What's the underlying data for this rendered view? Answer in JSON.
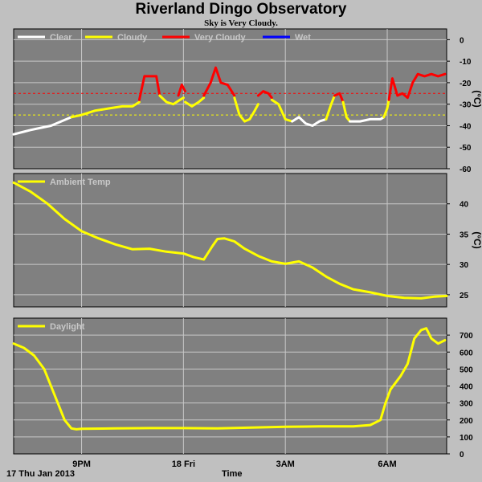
{
  "title": "Riverland Dingo Observatory",
  "subtitle": "Sky is Very Cloudy.",
  "date_label": "17 Thu Jan 2013",
  "xlabel": "Time",
  "x_ticks": [
    {
      "t": 2.0,
      "label": "9PM"
    },
    {
      "t": 5.0,
      "label": "18 Fri"
    },
    {
      "t": 8.0,
      "label": "3AM"
    },
    {
      "t": 11.0,
      "label": "6AM"
    }
  ],
  "x_range": [
    0,
    12.75
  ],
  "colors": {
    "panel_bg": "#808080",
    "page_bg": "#c0c0c0",
    "grid": "#c8c8c8",
    "clear": "#ffffff",
    "cloudy": "#ffff00",
    "very_cloudy": "#ff0000",
    "wet": "#0000ff"
  },
  "chart_data": [
    {
      "type": "line",
      "panel": "sky",
      "ylabel": "(°C)",
      "ylim": [
        -60,
        5
      ],
      "yticks": [
        0,
        -10,
        -20,
        -30,
        -40,
        -50,
        -60
      ],
      "legend": [
        {
          "name": "Clear",
          "color": "#ffffff"
        },
        {
          "name": "Cloudy",
          "color": "#ffff00"
        },
        {
          "name": "Very Cloudy",
          "color": "#ff0000"
        },
        {
          "name": "Wet",
          "color": "#0000ff"
        }
      ],
      "thresholds": [
        {
          "value": -25,
          "color": "#ff0000"
        },
        {
          "value": -35,
          "color": "#ffff00"
        }
      ],
      "series": [
        {
          "state": "clear",
          "x": [
            0,
            0.25,
            0.5,
            0.8,
            1.1,
            1.4,
            1.7
          ],
          "y": [
            -44,
            -43,
            -42,
            -41,
            -40,
            -38,
            -36
          ]
        },
        {
          "state": "cloudy",
          "x": [
            1.7,
            2.0,
            2.4,
            2.8,
            3.2,
            3.5,
            3.7
          ],
          "y": [
            -36,
            -35,
            -33,
            -32,
            -31,
            -31,
            -29
          ]
        },
        {
          "state": "very_cloudy",
          "x": [
            3.7,
            3.85,
            4.0,
            4.2,
            4.3
          ],
          "y": [
            -28,
            -17,
            -17,
            -17,
            -26
          ]
        },
        {
          "state": "cloudy",
          "x": [
            4.3,
            4.5,
            4.7,
            4.9,
            5.0
          ],
          "y": [
            -26,
            -29,
            -30,
            -28,
            -27
          ]
        },
        {
          "state": "very_cloudy",
          "x": [
            4.85,
            4.95,
            5.05
          ],
          "y": [
            -26,
            -21,
            -24
          ]
        },
        {
          "state": "cloudy",
          "x": [
            5.05,
            5.25,
            5.45,
            5.6
          ],
          "y": [
            -29,
            -31,
            -29,
            -27
          ]
        },
        {
          "state": "very_cloudy",
          "x": [
            5.6,
            5.8,
            5.95,
            6.1,
            6.3,
            6.5
          ],
          "y": [
            -26,
            -20,
            -13,
            -20,
            -21,
            -26
          ]
        },
        {
          "state": "cloudy",
          "x": [
            6.5,
            6.65,
            6.8,
            6.95,
            7.1,
            7.2
          ],
          "y": [
            -27,
            -35,
            -38,
            -37,
            -33,
            -30
          ]
        },
        {
          "state": "very_cloudy",
          "x": [
            7.2,
            7.35,
            7.5,
            7.6
          ],
          "y": [
            -26,
            -24,
            -25,
            -27
          ]
        },
        {
          "state": "cloudy",
          "x": [
            7.6,
            7.8,
            8.0,
            8.2
          ],
          "y": [
            -28,
            -30,
            -37,
            -38
          ]
        },
        {
          "state": "clear",
          "x": [
            8.2,
            8.4,
            8.6,
            8.8,
            9.0,
            9.2
          ],
          "y": [
            -38,
            -36,
            -39,
            -40,
            -38,
            -37
          ]
        },
        {
          "state": "cloudy",
          "x": [
            9.2,
            9.35,
            9.45
          ],
          "y": [
            -37,
            -30,
            -26
          ]
        },
        {
          "state": "very_cloudy",
          "x": [
            9.45,
            9.6,
            9.7
          ],
          "y": [
            -26,
            -25,
            -29
          ]
        },
        {
          "state": "cloudy",
          "x": [
            9.7,
            9.8,
            9.9
          ],
          "y": [
            -29,
            -36,
            -38
          ]
        },
        {
          "state": "clear",
          "x": [
            9.9,
            10.2,
            10.5,
            10.8,
            10.9
          ],
          "y": [
            -38,
            -38,
            -37,
            -37,
            -36
          ]
        },
        {
          "state": "cloudy",
          "x": [
            10.9,
            11.0,
            11.05
          ],
          "y": [
            -36,
            -32,
            -28
          ]
        },
        {
          "state": "very_cloudy",
          "x": [
            11.05,
            11.15,
            11.3,
            11.45,
            11.6,
            11.75,
            11.9,
            12.1,
            12.3,
            12.5,
            12.7
          ],
          "y": [
            -28,
            -18,
            -26,
            -25,
            -27,
            -20,
            -16,
            -17,
            -16,
            -17,
            -16
          ]
        }
      ]
    },
    {
      "type": "line",
      "panel": "ambient",
      "ylabel": "(°C)",
      "ylim": [
        23,
        45
      ],
      "yticks": [
        25,
        30,
        35,
        40
      ],
      "legend": [
        {
          "name": "Ambient Temp",
          "color": "#ffff00"
        }
      ],
      "series": [
        {
          "name": "Ambient Temp",
          "x": [
            0,
            0.5,
            1.0,
            1.5,
            2.0,
            2.5,
            3.0,
            3.5,
            4.0,
            4.5,
            5.0,
            5.3,
            5.6,
            5.85,
            6.0,
            6.2,
            6.5,
            6.8,
            7.2,
            7.6,
            8.0,
            8.4,
            8.8,
            9.2,
            9.6,
            10.0,
            10.5,
            11.0,
            11.5,
            12.0,
            12.4,
            12.75
          ],
          "y": [
            43.5,
            42,
            40,
            37.5,
            35.5,
            34.3,
            33.3,
            32.5,
            32.6,
            32.1,
            31.8,
            31.2,
            30.8,
            33.0,
            34.2,
            34.3,
            33.8,
            32.6,
            31.4,
            30.5,
            30.1,
            30.5,
            29.5,
            28.0,
            26.8,
            25.9,
            25.4,
            24.8,
            24.5,
            24.4,
            24.7,
            24.8
          ]
        }
      ]
    },
    {
      "type": "line",
      "panel": "daylight",
      "ylabel": "",
      "ylim": [
        0,
        800
      ],
      "yticks": [
        0,
        100,
        200,
        300,
        400,
        500,
        600,
        700
      ],
      "legend": [
        {
          "name": "Daylight",
          "color": "#ffff00"
        }
      ],
      "series": [
        {
          "name": "Daylight",
          "x": [
            0,
            0.3,
            0.6,
            0.9,
            1.2,
            1.5,
            1.7,
            1.85,
            2.0,
            3.0,
            4.0,
            5.0,
            6.0,
            7.0,
            8.0,
            9.0,
            10.0,
            10.5,
            10.8,
            10.95,
            11.1,
            11.4,
            11.6,
            11.8,
            12.0,
            12.15,
            12.3,
            12.5,
            12.7
          ],
          "y": [
            650,
            625,
            580,
            500,
            350,
            200,
            150,
            145,
            148,
            150,
            152,
            152,
            150,
            155,
            160,
            162,
            162,
            170,
            200,
            300,
            380,
            460,
            530,
            680,
            730,
            740,
            680,
            650,
            670
          ]
        }
      ]
    }
  ]
}
